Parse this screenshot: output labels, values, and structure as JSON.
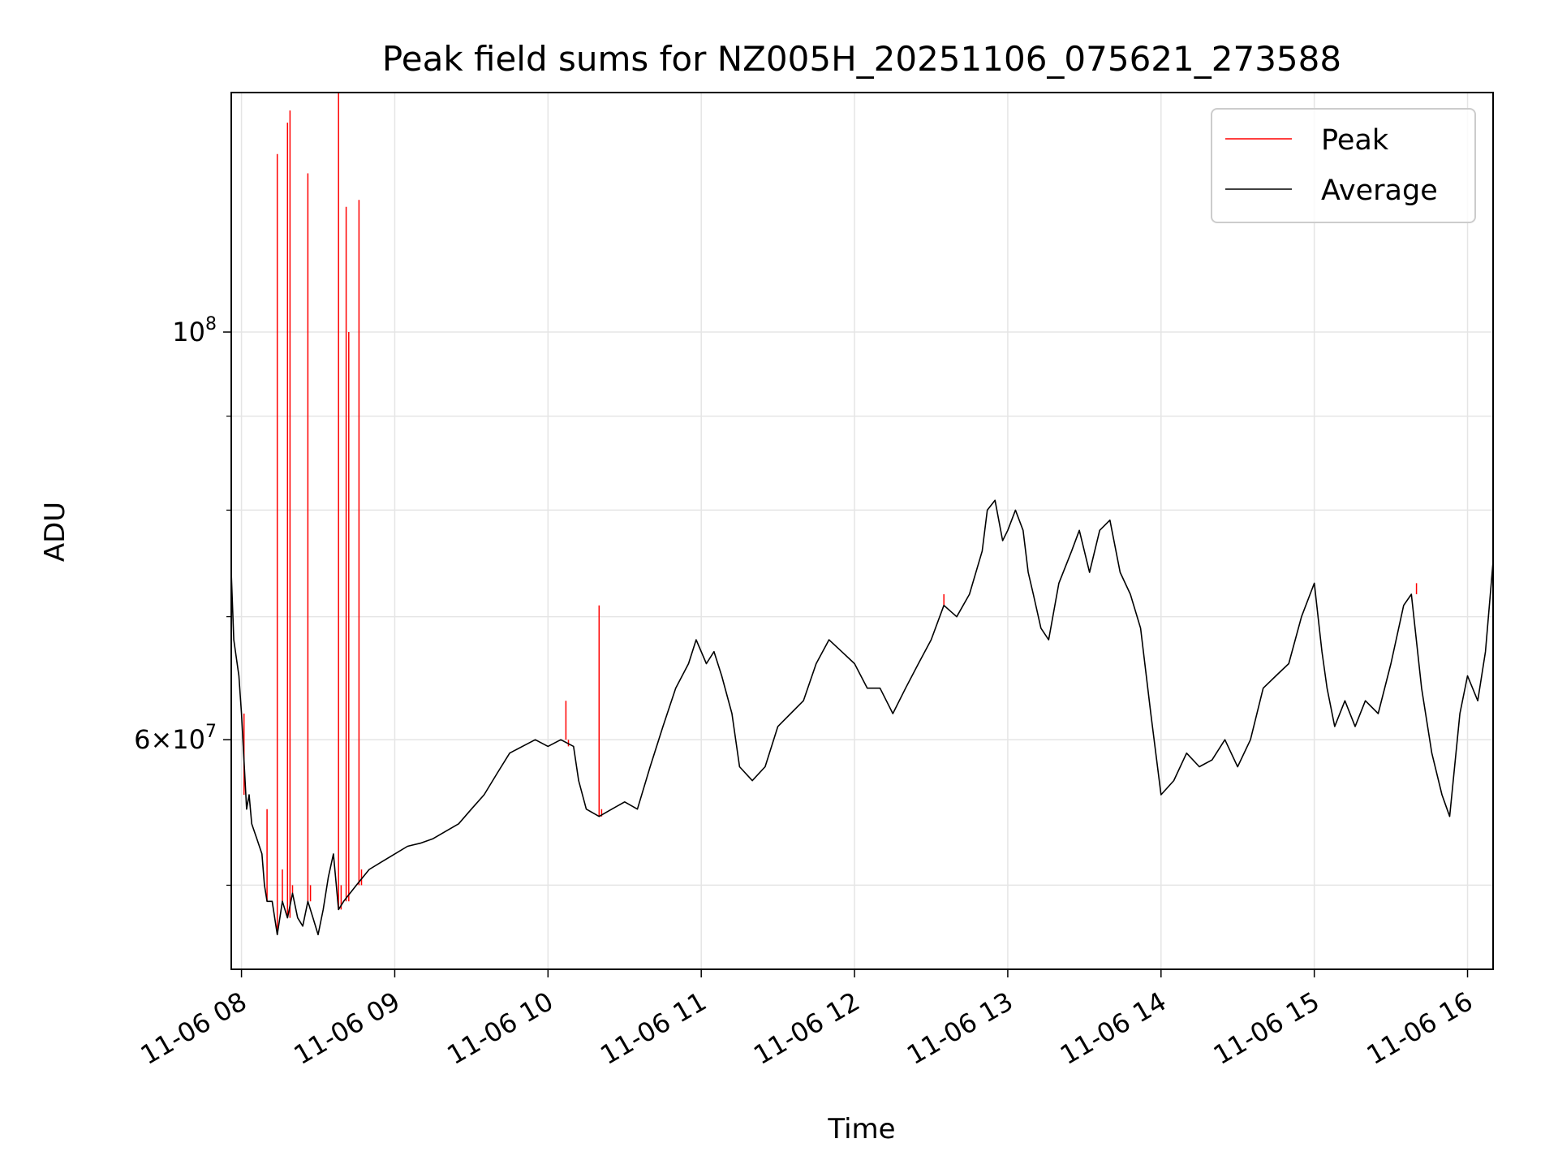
{
  "chart_data": {
    "type": "line",
    "title": "Peak field sums for NZ005H_20251106_075621_273588",
    "xlabel": "Time",
    "ylabel": "ADU",
    "yscale": "log",
    "ylim": [
      45000000,
      135000000
    ],
    "xlim": [
      "2025-11-06 07:56",
      "2025-11-06 16:10"
    ],
    "x_ticks": [
      "11-06 08",
      "11-06 09",
      "11-06 10",
      "11-06 11",
      "11-06 12",
      "11-06 13",
      "11-06 14",
      "11-06 15",
      "11-06 16"
    ],
    "y_ticks": [
      {
        "value": 100000000,
        "mantissa": "",
        "base": "10",
        "exp": "8"
      },
      {
        "value": 60000000,
        "mantissa": "6×",
        "base": "10",
        "exp": "7"
      }
    ],
    "y_minor_ticks": [
      50000000,
      70000000,
      80000000,
      90000000
    ],
    "grid": true,
    "legend_position": "top-right",
    "legend": [
      "Peak",
      "Average"
    ],
    "series": [
      {
        "name": "Average",
        "color": "#000000",
        "points": [
          [
            "07:56",
            74000000
          ],
          [
            "07:57",
            68000000
          ],
          [
            "07:59",
            65000000
          ],
          [
            "08:00",
            62000000
          ],
          [
            "08:02",
            55000000
          ],
          [
            "08:03",
            56000000
          ],
          [
            "08:04",
            54000000
          ],
          [
            "08:06",
            53000000
          ],
          [
            "08:08",
            52000000
          ],
          [
            "08:09",
            50000000
          ],
          [
            "08:10",
            49000000
          ],
          [
            "08:12",
            49000000
          ],
          [
            "08:14",
            47000000
          ],
          [
            "08:16",
            49000000
          ],
          [
            "08:18",
            48000000
          ],
          [
            "08:20",
            49500000
          ],
          [
            "08:22",
            48000000
          ],
          [
            "08:24",
            47500000
          ],
          [
            "08:26",
            49000000
          ],
          [
            "08:28",
            48000000
          ],
          [
            "08:30",
            47000000
          ],
          [
            "08:32",
            48500000
          ],
          [
            "08:34",
            50500000
          ],
          [
            "08:36",
            52000000
          ],
          [
            "08:38",
            48500000
          ],
          [
            "08:40",
            49000000
          ],
          [
            "08:45",
            50000000
          ],
          [
            "08:50",
            51000000
          ],
          [
            "08:55",
            51500000
          ],
          [
            "09:00",
            52000000
          ],
          [
            "09:05",
            52500000
          ],
          [
            "09:10",
            52700000
          ],
          [
            "09:15",
            53000000
          ],
          [
            "09:20",
            53500000
          ],
          [
            "09:25",
            54000000
          ],
          [
            "09:30",
            55000000
          ],
          [
            "09:35",
            56000000
          ],
          [
            "09:40",
            57500000
          ],
          [
            "09:45",
            59000000
          ],
          [
            "09:50",
            59500000
          ],
          [
            "09:55",
            60000000
          ],
          [
            "10:00",
            59500000
          ],
          [
            "10:05",
            60000000
          ],
          [
            "10:10",
            59500000
          ],
          [
            "10:12",
            57000000
          ],
          [
            "10:15",
            55000000
          ],
          [
            "10:20",
            54500000
          ],
          [
            "10:25",
            55000000
          ],
          [
            "10:30",
            55500000
          ],
          [
            "10:35",
            55000000
          ],
          [
            "10:40",
            58000000
          ],
          [
            "10:45",
            61000000
          ],
          [
            "10:50",
            64000000
          ],
          [
            "10:55",
            66000000
          ],
          [
            "10:58",
            68000000
          ],
          [
            "11:02",
            66000000
          ],
          [
            "11:05",
            67000000
          ],
          [
            "11:08",
            65000000
          ],
          [
            "11:12",
            62000000
          ],
          [
            "11:15",
            58000000
          ],
          [
            "11:20",
            57000000
          ],
          [
            "11:25",
            58000000
          ],
          [
            "11:30",
            61000000
          ],
          [
            "11:35",
            62000000
          ],
          [
            "11:40",
            63000000
          ],
          [
            "11:45",
            66000000
          ],
          [
            "11:50",
            68000000
          ],
          [
            "11:55",
            67000000
          ],
          [
            "12:00",
            66000000
          ],
          [
            "12:05",
            64000000
          ],
          [
            "12:10",
            64000000
          ],
          [
            "12:15",
            62000000
          ],
          [
            "12:20",
            64000000
          ],
          [
            "12:25",
            66000000
          ],
          [
            "12:30",
            68000000
          ],
          [
            "12:35",
            71000000
          ],
          [
            "12:40",
            70000000
          ],
          [
            "12:45",
            72000000
          ],
          [
            "12:50",
            76000000
          ],
          [
            "12:52",
            80000000
          ],
          [
            "12:55",
            81000000
          ],
          [
            "12:58",
            77000000
          ],
          [
            "13:00",
            78000000
          ],
          [
            "13:03",
            80000000
          ],
          [
            "13:06",
            78000000
          ],
          [
            "13:08",
            74000000
          ],
          [
            "13:10",
            72000000
          ],
          [
            "13:13",
            69000000
          ],
          [
            "13:16",
            68000000
          ],
          [
            "13:20",
            73000000
          ],
          [
            "13:25",
            76000000
          ],
          [
            "13:28",
            78000000
          ],
          [
            "13:32",
            74000000
          ],
          [
            "13:36",
            78000000
          ],
          [
            "13:40",
            79000000
          ],
          [
            "13:44",
            74000000
          ],
          [
            "13:48",
            72000000
          ],
          [
            "13:52",
            69000000
          ],
          [
            "13:56",
            62000000
          ],
          [
            "14:00",
            56000000
          ],
          [
            "14:05",
            57000000
          ],
          [
            "14:10",
            59000000
          ],
          [
            "14:15",
            58000000
          ],
          [
            "14:20",
            58500000
          ],
          [
            "14:25",
            60000000
          ],
          [
            "14:30",
            58000000
          ],
          [
            "14:35",
            60000000
          ],
          [
            "14:40",
            64000000
          ],
          [
            "14:45",
            65000000
          ],
          [
            "14:50",
            66000000
          ],
          [
            "14:55",
            70000000
          ],
          [
            "15:00",
            73000000
          ],
          [
            "15:03",
            67000000
          ],
          [
            "15:05",
            64000000
          ],
          [
            "15:08",
            61000000
          ],
          [
            "15:12",
            63000000
          ],
          [
            "15:16",
            61000000
          ],
          [
            "15:20",
            63000000
          ],
          [
            "15:25",
            62000000
          ],
          [
            "15:30",
            66000000
          ],
          [
            "15:35",
            71000000
          ],
          [
            "15:38",
            72000000
          ],
          [
            "15:42",
            64000000
          ],
          [
            "15:46",
            59000000
          ],
          [
            "15:50",
            56000000
          ],
          [
            "15:53",
            54500000
          ],
          [
            "15:57",
            62000000
          ],
          [
            "16:00",
            65000000
          ],
          [
            "16:04",
            63000000
          ],
          [
            "16:07",
            67000000
          ],
          [
            "16:10",
            75000000
          ]
        ]
      },
      {
        "name": "Peak",
        "color": "#ff0000",
        "points": [
          [
            "07:56",
            77000000
          ],
          [
            "08:01",
            56000000
          ],
          [
            "08:10",
            55000000
          ],
          [
            "08:14",
            125000000
          ],
          [
            "08:16",
            51000000
          ],
          [
            "08:18",
            130000000
          ],
          [
            "08:19",
            132000000
          ],
          [
            "08:20",
            50000000
          ],
          [
            "08:26",
            122000000
          ],
          [
            "08:27",
            50000000
          ],
          [
            "08:38",
            135000000
          ],
          [
            "08:39",
            50000000
          ],
          [
            "08:41",
            117000000
          ],
          [
            "08:42",
            100000000
          ],
          [
            "08:43",
            50000000
          ],
          [
            "08:46",
            118000000
          ],
          [
            "08:47",
            51000000
          ],
          [
            "10:07",
            63000000
          ],
          [
            "10:08",
            60000000
          ],
          [
            "10:20",
            71000000
          ],
          [
            "10:21",
            55000000
          ],
          [
            "12:35",
            72000000
          ],
          [
            "15:40",
            73000000
          ],
          [
            "16:10",
            76000000
          ]
        ]
      }
    ]
  }
}
